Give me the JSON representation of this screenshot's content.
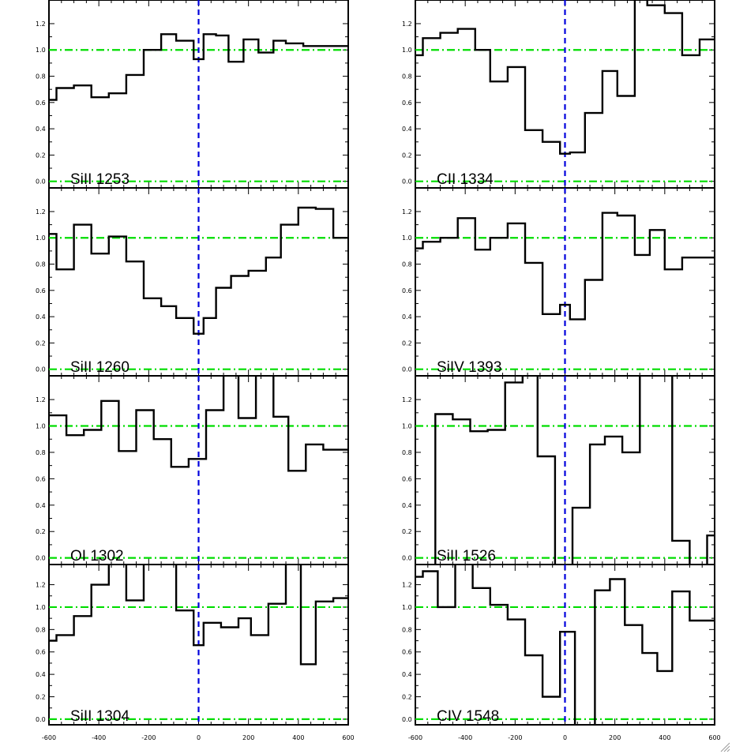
{
  "colors": {
    "frame": "#000000",
    "spectrum": "#000000",
    "reference_line": "#00dd00",
    "zero_velocity": "#0000dd"
  },
  "chart_data": [
    {
      "type": "line",
      "step": true,
      "title": "SiII 1253",
      "xlim": [
        -600,
        600
      ],
      "ylim": [
        -0.05,
        1.38
      ],
      "yticks": [
        0.0,
        0.2,
        0.4,
        0.6,
        0.8,
        1.0,
        1.2
      ],
      "ytick_labels": [
        "0.0",
        "0.2",
        "0.4",
        "0.6",
        "0.8",
        "1.0",
        "1.2"
      ],
      "reference_lines_y": [
        0.0,
        1.0
      ],
      "marker_x": 0,
      "x": [
        -600,
        -570,
        -500,
        -430,
        -360,
        -290,
        -220,
        -150,
        -90,
        -20,
        20,
        70,
        120,
        180,
        240,
        300,
        350,
        420,
        490,
        560
      ],
      "y": [
        0.62,
        0.71,
        0.73,
        0.64,
        0.67,
        0.81,
        1.0,
        1.12,
        1.07,
        0.93,
        1.12,
        1.11,
        0.91,
        1.08,
        0.98,
        1.07,
        1.05,
        1.03,
        1.03,
        1.03
      ]
    },
    {
      "type": "line",
      "step": true,
      "title": "CII 1334",
      "xlim": [
        -600,
        600
      ],
      "ylim": [
        -0.05,
        1.38
      ],
      "yticks": [
        0.0,
        0.2,
        0.4,
        0.6,
        0.8,
        1.0,
        1.2
      ],
      "ytick_labels": [
        "0.0",
        "0.2",
        "0.4",
        "0.6",
        "0.8",
        "1.0",
        "1.2"
      ],
      "reference_lines_y": [
        0.0,
        1.0
      ],
      "marker_x": 0,
      "x": [
        -600,
        -570,
        -500,
        -430,
        -360,
        -300,
        -230,
        -160,
        -90,
        -20,
        20,
        80,
        150,
        210,
        280,
        330,
        400,
        470,
        540,
        580
      ],
      "y": [
        0.96,
        1.09,
        1.13,
        1.16,
        1.0,
        0.76,
        0.87,
        0.39,
        0.3,
        0.21,
        0.22,
        0.52,
        0.84,
        0.65,
        1.42,
        1.34,
        1.28,
        0.96,
        1.08,
        1.08
      ]
    },
    {
      "type": "line",
      "step": true,
      "title": "SiII 1260",
      "xlim": [
        -600,
        600
      ],
      "ylim": [
        -0.05,
        1.38
      ],
      "yticks": [
        0.0,
        0.2,
        0.4,
        0.6,
        0.8,
        1.0,
        1.2
      ],
      "ytick_labels": [
        "0.0",
        "0.2",
        "0.4",
        "0.6",
        "0.8",
        "1.0",
        "1.2"
      ],
      "reference_lines_y": [
        0.0,
        1.0
      ],
      "marker_x": 0,
      "x": [
        -600,
        -570,
        -500,
        -430,
        -360,
        -290,
        -220,
        -150,
        -90,
        -20,
        20,
        70,
        130,
        200,
        270,
        330,
        400,
        470,
        540,
        600
      ],
      "y": [
        1.03,
        0.76,
        1.1,
        0.88,
        1.01,
        0.82,
        0.54,
        0.48,
        0.39,
        0.27,
        0.39,
        0.62,
        0.71,
        0.75,
        0.85,
        1.1,
        1.23,
        1.22,
        1.0,
        1.0
      ]
    },
    {
      "type": "line",
      "step": true,
      "title": "SiIV 1393",
      "xlim": [
        -600,
        600
      ],
      "ylim": [
        -0.05,
        1.38
      ],
      "yticks": [
        0.0,
        0.2,
        0.4,
        0.6,
        0.8,
        1.0,
        1.2
      ],
      "ytick_labels": [
        "0.0",
        "0.2",
        "0.4",
        "0.6",
        "0.8",
        "1.0",
        "1.2"
      ],
      "reference_lines_y": [
        0.0,
        1.0
      ],
      "marker_x": 0,
      "x": [
        -600,
        -570,
        -500,
        -430,
        -360,
        -300,
        -230,
        -160,
        -90,
        -20,
        20,
        80,
        150,
        210,
        280,
        340,
        400,
        470,
        540,
        580
      ],
      "y": [
        0.92,
        0.97,
        1.0,
        1.15,
        0.91,
        1.0,
        1.11,
        0.81,
        0.42,
        0.49,
        0.38,
        0.68,
        1.19,
        1.17,
        0.87,
        1.06,
        0.76,
        0.85,
        0.85,
        0.85
      ]
    },
    {
      "type": "line",
      "step": true,
      "title": "OI 1302",
      "xlim": [
        -600,
        600
      ],
      "ylim": [
        -0.05,
        1.38
      ],
      "yticks": [
        0.0,
        0.2,
        0.4,
        0.6,
        0.8,
        1.0,
        1.2
      ],
      "ytick_labels": [
        "0.0",
        "0.2",
        "0.4",
        "0.6",
        "0.8",
        "1.0",
        "1.2"
      ],
      "reference_lines_y": [
        0.0,
        1.0
      ],
      "marker_x": 0,
      "x": [
        -600,
        -530,
        -460,
        -390,
        -320,
        -250,
        -180,
        -110,
        -40,
        30,
        100,
        160,
        230,
        300,
        360,
        430,
        500,
        560,
        600
      ],
      "y": [
        1.08,
        0.93,
        0.97,
        1.19,
        0.81,
        1.12,
        0.9,
        0.69,
        0.75,
        1.12,
        1.5,
        1.06,
        1.5,
        1.07,
        0.66,
        0.86,
        0.82,
        0.82,
        0.82
      ]
    },
    {
      "type": "line",
      "step": true,
      "title": "SiII 1526",
      "xlim": [
        -600,
        600
      ],
      "ylim": [
        -0.05,
        1.38
      ],
      "yticks": [
        0.0,
        0.2,
        0.4,
        0.6,
        0.8,
        1.0,
        1.2
      ],
      "ytick_labels": [
        "0.0",
        "0.2",
        "0.4",
        "0.6",
        "0.8",
        "1.0",
        "1.2"
      ],
      "reference_lines_y": [
        0.0,
        1.0
      ],
      "marker_x": 0,
      "x": [
        -600,
        -520,
        -450,
        -380,
        -310,
        -240,
        -170,
        -110,
        -40,
        30,
        100,
        160,
        230,
        300,
        360,
        430,
        500,
        570,
        600
      ],
      "y": [
        -0.1,
        1.09,
        1.05,
        0.96,
        0.97,
        1.33,
        1.5,
        0.77,
        -0.1,
        0.38,
        0.86,
        0.92,
        0.8,
        1.5,
        1.5,
        0.13,
        -0.1,
        0.17,
        0.17
      ]
    },
    {
      "type": "line",
      "step": true,
      "title": "SiII 1304",
      "xlim": [
        -600,
        600
      ],
      "ylim": [
        -0.05,
        1.38
      ],
      "yticks": [
        0.0,
        0.2,
        0.4,
        0.6,
        0.8,
        1.0,
        1.2
      ],
      "ytick_labels": [
        "0.0",
        "0.2",
        "0.4",
        "0.6",
        "0.8",
        "1.0",
        "1.2"
      ],
      "reference_lines_y": [
        0.0,
        1.0
      ],
      "marker_x": 0,
      "x": [
        -600,
        -570,
        -500,
        -430,
        -360,
        -290,
        -220,
        -150,
        -90,
        -20,
        20,
        90,
        160,
        210,
        280,
        350,
        410,
        470,
        540,
        600
      ],
      "y": [
        0.7,
        0.75,
        0.92,
        1.2,
        1.5,
        1.06,
        1.5,
        1.5,
        0.97,
        0.66,
        0.86,
        0.82,
        0.9,
        0.75,
        1.03,
        1.4,
        0.49,
        1.05,
        1.08,
        1.08
      ]
    },
    {
      "type": "line",
      "step": true,
      "title": "CIV 1548",
      "xlim": [
        -600,
        600
      ],
      "ylim": [
        -0.05,
        1.38
      ],
      "yticks": [
        0.0,
        0.2,
        0.4,
        0.6,
        0.8,
        1.0,
        1.2
      ],
      "ytick_labels": [
        "0.0",
        "0.2",
        "0.4",
        "0.6",
        "0.8",
        "1.0",
        "1.2"
      ],
      "reference_lines_y": [
        0.0,
        1.0
      ],
      "marker_x": 0,
      "x": [
        -600,
        -570,
        -510,
        -440,
        -370,
        -300,
        -230,
        -160,
        -90,
        -20,
        40,
        120,
        180,
        240,
        310,
        370,
        430,
        500,
        560,
        600
      ],
      "y": [
        1.27,
        1.32,
        1.0,
        1.5,
        1.17,
        1.02,
        0.89,
        0.57,
        0.2,
        0.78,
        -0.1,
        1.15,
        1.25,
        0.84,
        0.59,
        0.43,
        1.14,
        0.88,
        0.88,
        0.88
      ]
    }
  ],
  "xaxis": {
    "ticks": [
      -600,
      -400,
      -200,
      0,
      200,
      400,
      600
    ],
    "tick_labels": [
      "-600",
      "-400",
      "-200",
      "0",
      "200",
      "400",
      "600"
    ]
  }
}
